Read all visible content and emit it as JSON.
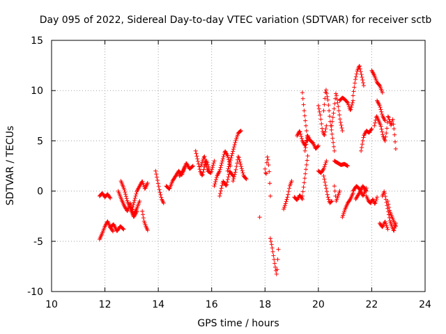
{
  "chart_data": {
    "type": "scatter",
    "title": "Day 095 of 2022, Sidereal Day-to-day VTEC variation (SDTVAR) for receiver sctb",
    "xlabel": "GPS time / hours",
    "ylabel": "SDTVAR / TECUs",
    "xlim": [
      10,
      24
    ],
    "ylim": [
      -10,
      15
    ],
    "xticks": [
      "10",
      "12",
      "14",
      "16",
      "18",
      "20",
      "22",
      "24"
    ],
    "yticks": [
      "-10",
      "-5",
      "0",
      "5",
      "10",
      "15"
    ],
    "grid": true,
    "marker": "plus",
    "color": "#ff0000",
    "segments": [
      {
        "x0": 11.8,
        "x1": 12.3,
        "y": [
          -4.8,
          -4.2,
          -3.5,
          -3.0,
          -3.6,
          -4.0
        ]
      },
      {
        "x0": 11.8,
        "x1": 12.2,
        "y": [
          -0.5,
          -0.2,
          -0.6,
          -0.3,
          -0.7
        ]
      },
      {
        "x0": 12.2,
        "x1": 12.7,
        "y": [
          -3.6,
          -3.3,
          -4.0,
          -3.5,
          -3.8
        ]
      },
      {
        "x0": 12.5,
        "x1": 13.3,
        "y": [
          0.0,
          -0.8,
          -1.5,
          -2.0,
          -1.2,
          -2.4,
          -1.8,
          -1.0
        ]
      },
      {
        "x0": 12.6,
        "x1": 13.2,
        "y": [
          1.0,
          0.2,
          -1.0,
          -1.8,
          -2.6,
          -2.0
        ]
      },
      {
        "x0": 13.0,
        "x1": 13.6,
        "y": [
          -2.0,
          -1.0,
          0.0,
          0.5,
          1.0,
          0.2,
          0.8
        ]
      },
      {
        "x0": 13.4,
        "x1": 13.6,
        "y": [
          -2.0,
          -3.0,
          -3.5,
          -3.9
        ]
      },
      {
        "x0": 13.9,
        "x1": 14.2,
        "y": [
          2.0,
          1.0,
          0.0,
          -0.8,
          -1.2
        ]
      },
      {
        "x0": 14.3,
        "x1": 15.0,
        "y": [
          0.5,
          0.2,
          1.0,
          1.5,
          2.0,
          1.6,
          2.4
        ]
      },
      {
        "x0": 14.8,
        "x1": 15.3,
        "y": [
          1.5,
          2.0,
          2.8,
          2.2,
          2.5
        ]
      },
      {
        "x0": 15.4,
        "x1": 15.9,
        "y": [
          4.0,
          3.0,
          2.0,
          1.5,
          2.5,
          3.0,
          2.2
        ]
      },
      {
        "x0": 15.6,
        "x1": 16.1,
        "y": [
          2.5,
          3.5,
          2.0,
          1.8,
          3.0
        ]
      },
      {
        "x0": 16.1,
        "x1": 16.7,
        "y": [
          0.5,
          1.5,
          2.0,
          3.0,
          4.0,
          3.5,
          2.5
        ]
      },
      {
        "x0": 16.3,
        "x1": 16.8,
        "y": [
          -0.5,
          1.0,
          0.5,
          2.0,
          1.5
        ]
      },
      {
        "x0": 16.6,
        "x1": 17.1,
        "y": [
          2.0,
          3.0,
          4.0,
          5.0,
          5.8,
          6.0
        ]
      },
      {
        "x0": 16.8,
        "x1": 17.3,
        "y": [
          1.0,
          2.0,
          3.5,
          2.5,
          1.5,
          1.2
        ]
      },
      {
        "x0": 17.8,
        "x1": 17.85,
        "y": [
          -2.6
        ]
      },
      {
        "x0": 18.0,
        "x1": 18.2,
        "y": [
          2.2,
          1.5,
          3.5,
          3.0,
          1.8,
          -0.5
        ]
      },
      {
        "x0": 18.2,
        "x1": 18.5,
        "y": [
          -4.7,
          -5.5,
          -6.5,
          -7.5,
          -8.4,
          -5.8
        ]
      },
      {
        "x0": 18.7,
        "x1": 19.0,
        "y": [
          -1.8,
          -1.2,
          -0.5,
          0.5,
          1.0
        ]
      },
      {
        "x0": 19.1,
        "x1": 19.4,
        "y": [
          -0.6,
          -0.9,
          -0.4,
          -0.8
        ]
      },
      {
        "x0": 19.2,
        "x1": 19.6,
        "y": [
          5.5,
          6.0,
          5.0,
          4.5,
          5.5
        ]
      },
      {
        "x0": 19.4,
        "x1": 19.6,
        "y": [
          9.8,
          8.0,
          6.5,
          5.0
        ]
      },
      {
        "x0": 19.4,
        "x1": 19.6,
        "y": [
          -0.5,
          0.5,
          1.5,
          2.5,
          3.5
        ]
      },
      {
        "x0": 19.5,
        "x1": 20.0,
        "y": [
          4.0,
          5.5,
          5.0,
          4.8,
          4.2,
          4.5
        ]
      },
      {
        "x0": 20.0,
        "x1": 20.3,
        "y": [
          8.5,
          7.5,
          6.0,
          5.5,
          6.5
        ]
      },
      {
        "x0": 20.0,
        "x1": 20.3,
        "y": [
          2.0,
          1.8,
          2.2,
          3.0
        ]
      },
      {
        "x0": 20.2,
        "x1": 20.6,
        "y": [
          8.0,
          10.2,
          9.0,
          7.0,
          5.5,
          4.0
        ]
      },
      {
        "x0": 20.2,
        "x1": 20.5,
        "y": [
          1.5,
          0.5,
          -0.5,
          -1.2,
          -1.0
        ]
      },
      {
        "x0": 20.5,
        "x1": 20.9,
        "y": [
          6.5,
          8.0,
          9.8,
          8.5,
          7.0,
          6.0
        ]
      },
      {
        "x0": 20.6,
        "x1": 21.1,
        "y": [
          3.0,
          2.8,
          2.6,
          2.7,
          2.5
        ]
      },
      {
        "x0": 20.6,
        "x1": 20.8,
        "y": [
          0.5,
          -1.0,
          -0.5,
          0.0
        ]
      },
      {
        "x0": 20.8,
        "x1": 21.3,
        "y": [
          9.0,
          9.3,
          9.1,
          8.8,
          8.0,
          9.0
        ]
      },
      {
        "x0": 20.9,
        "x1": 21.3,
        "y": [
          -2.6,
          -1.8,
          -1.2,
          -0.8,
          -0.2
        ]
      },
      {
        "x0": 21.3,
        "x1": 21.7,
        "y": [
          9.5,
          11.0,
          12.0,
          12.5,
          11.5,
          10.5
        ]
      },
      {
        "x0": 21.3,
        "x1": 21.8,
        "y": [
          0.0,
          0.5,
          0.2,
          -0.5,
          0.3
        ]
      },
      {
        "x0": 21.4,
        "x1": 21.8,
        "y": [
          -0.8,
          -0.2,
          0.5,
          0.0
        ]
      },
      {
        "x0": 21.6,
        "x1": 22.0,
        "y": [
          4.0,
          5.5,
          6.0,
          5.8,
          6.2
        ]
      },
      {
        "x0": 21.8,
        "x1": 22.2,
        "y": [
          -0.5,
          -1.0,
          -1.2,
          -0.8,
          -1.3,
          -0.6
        ]
      },
      {
        "x0": 22.0,
        "x1": 22.4,
        "y": [
          12.0,
          11.5,
          10.8,
          10.5,
          9.8
        ]
      },
      {
        "x0": 22.1,
        "x1": 22.5,
        "y": [
          6.5,
          7.5,
          7.0,
          6.5,
          5.5,
          5.0
        ]
      },
      {
        "x0": 22.2,
        "x1": 22.5,
        "y": [
          9.0,
          8.5,
          7.5,
          7.0
        ]
      },
      {
        "x0": 22.4,
        "x1": 22.9,
        "y": [
          -0.5,
          0.0,
          -1.0,
          -2.0,
          -3.0,
          -3.5,
          -4.0,
          -3.2
        ]
      },
      {
        "x0": 22.3,
        "x1": 22.6,
        "y": [
          -3.2,
          -3.6,
          -3.0,
          -3.8
        ]
      },
      {
        "x0": 22.5,
        "x1": 22.9,
        "y": [
          5.0,
          6.0,
          7.5,
          7.0,
          6.5,
          7.2,
          6.0,
          4.2
        ]
      },
      {
        "x0": 22.6,
        "x1": 22.9,
        "y": [
          -1.0,
          -2.0,
          -2.5,
          -3.0,
          -3.5
        ]
      }
    ]
  }
}
